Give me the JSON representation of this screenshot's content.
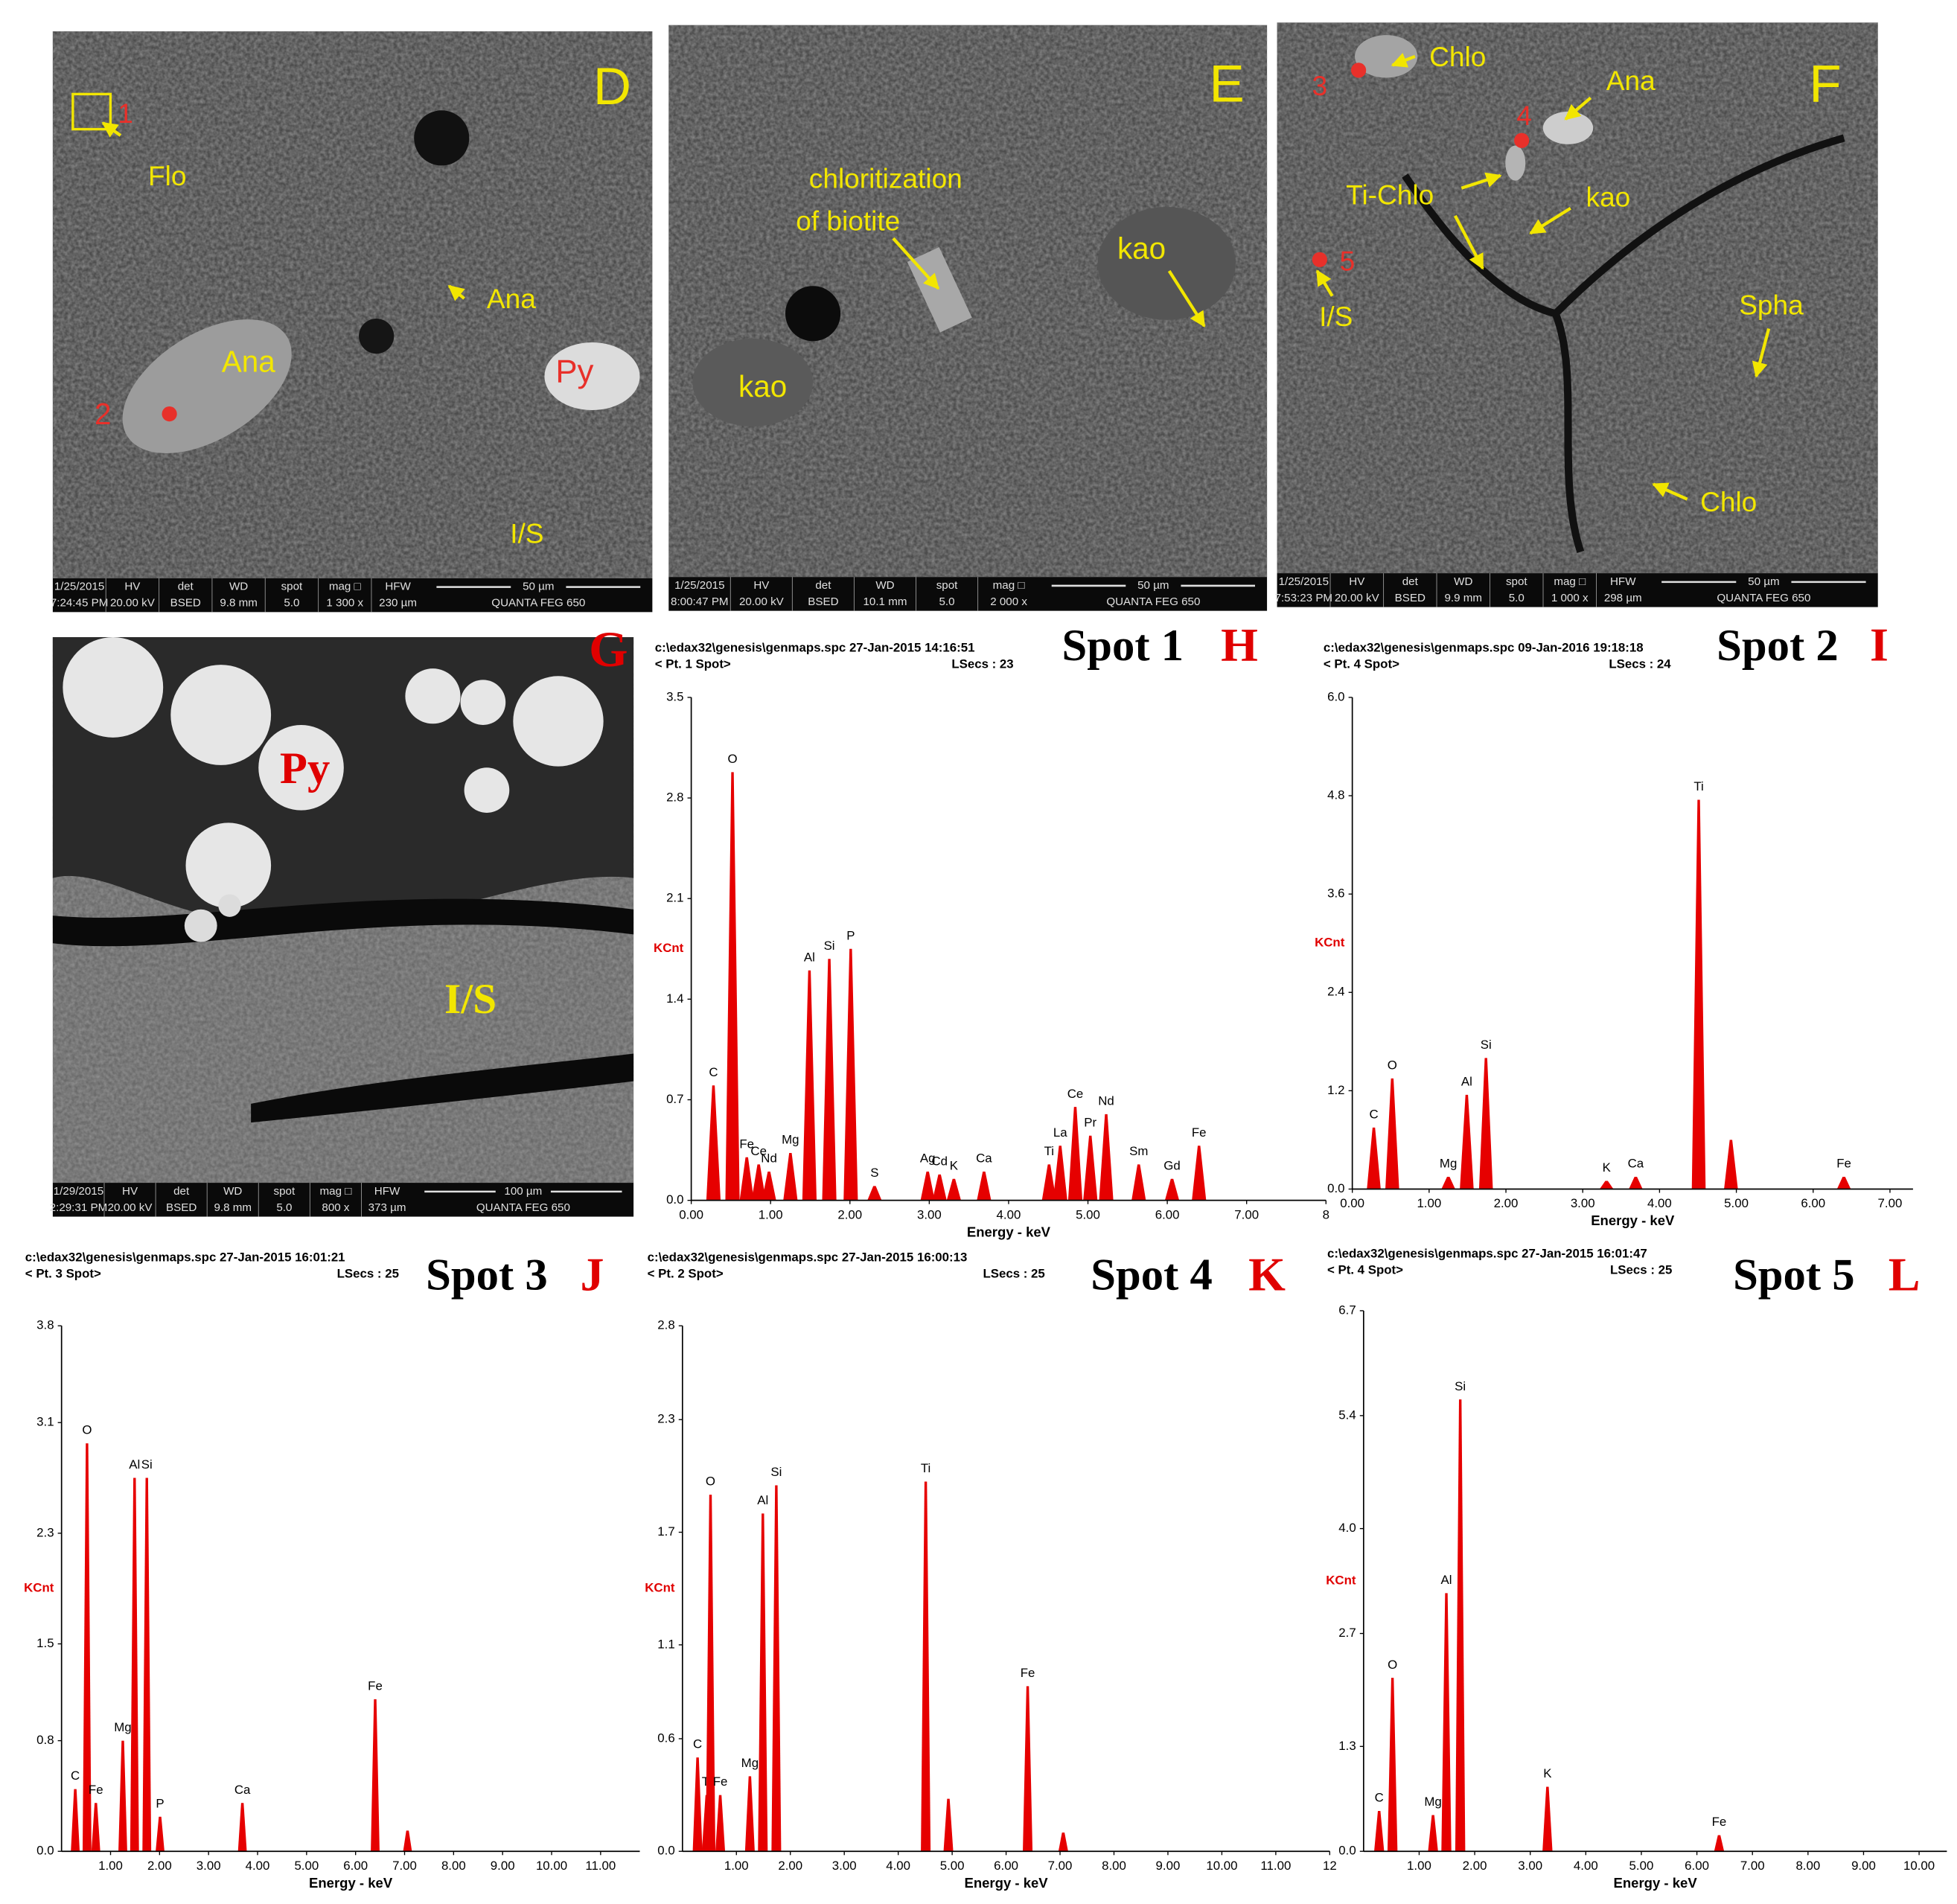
{
  "panels": [
    {
      "letter": "D",
      "labels": [
        "1",
        "Flo",
        "Ana",
        "Ana",
        "Py",
        "2",
        "I/S"
      ],
      "info": {
        "cells": [
          [
            "1/25/2015",
            "7:24:45 PM"
          ],
          [
            "HV",
            "20.00 kV"
          ],
          [
            "det",
            "BSED"
          ],
          [
            "WD",
            "9.8 mm"
          ],
          [
            "spot",
            "5.0"
          ],
          [
            "mag □",
            "1 300 x"
          ],
          [
            "HFW",
            "230 µm"
          ]
        ],
        "scale": "50 µm",
        "instrument": "QUANTA FEG 650"
      }
    },
    {
      "letter": "E",
      "labels": [
        "chloritization",
        "of  biotite",
        "kao",
        "kao"
      ],
      "info": {
        "cells": [
          [
            "1/25/2015",
            "8:00:47 PM"
          ],
          [
            "HV",
            "20.00 kV"
          ],
          [
            "det",
            "BSED"
          ],
          [
            "WD",
            "10.1 mm"
          ],
          [
            "spot",
            "5.0"
          ],
          [
            "mag □",
            "2 000 x"
          ]
        ],
        "scale": "50 µm",
        "instrument": "QUANTA FEG 650"
      }
    },
    {
      "letter": "F",
      "labels": [
        "3",
        "Chlo",
        "Ana",
        "4",
        "Ti-Chlo",
        "kao",
        "5",
        "I/S",
        "Spha",
        "Chlo"
      ],
      "info": {
        "cells": [
          [
            "1/25/2015",
            "7:53:23 PM"
          ],
          [
            "HV",
            "20.00 kV"
          ],
          [
            "det",
            "BSED"
          ],
          [
            "WD",
            "9.9 mm"
          ],
          [
            "spot",
            "5.0"
          ],
          [
            "mag □",
            "1 000 x"
          ],
          [
            "HFW",
            "298 µm"
          ]
        ],
        "scale": "50 µm",
        "instrument": "QUANTA FEG 650"
      }
    },
    {
      "letter": "G",
      "labels": [
        "Py",
        "I/S"
      ],
      "info": {
        "cells": [
          [
            "1/29/2015",
            "2:29:31 PM"
          ],
          [
            "HV",
            "20.00 kV"
          ],
          [
            "det",
            "BSED"
          ],
          [
            "WD",
            "9.8 mm"
          ],
          [
            "spot",
            "5.0"
          ],
          [
            "mag □",
            "800 x"
          ],
          [
            "HFW",
            "373 µm"
          ]
        ],
        "scale": "100 µm",
        "instrument": "QUANTA FEG 650"
      }
    }
  ],
  "chart_data": [
    {
      "type": "spectrum",
      "file": "c:\\edax32\\genesis\\genmaps.spc  27-Jan-2015 14:16:51",
      "point": "< Pt. 1 Spot>",
      "lsecs": "LSecs : 23",
      "title": "Spot 1",
      "panel": "H",
      "ylabel": "KCnt",
      "xlabel": "Energy - keV",
      "color": "#e60000",
      "x": [
        0.28,
        0.52,
        0.7,
        0.85,
        0.98,
        1.25,
        1.49,
        1.74,
        2.01,
        2.31,
        2.98,
        3.13,
        3.31,
        3.69,
        4.51,
        4.65,
        4.84,
        5.03,
        5.23,
        5.64,
        6.06,
        6.4
      ],
      "values": [
        0.8,
        2.98,
        0.3,
        0.25,
        0.2,
        0.33,
        1.6,
        1.68,
        1.75,
        0.1,
        0.2,
        0.18,
        0.15,
        0.2,
        0.25,
        0.38,
        0.65,
        0.45,
        0.6,
        0.25,
        0.15,
        0.38
      ],
      "peak_labels": [
        "C",
        "O",
        "Fe",
        "Ce",
        "Nd",
        "Mg",
        "Al",
        "Si",
        "P",
        "S",
        "Ag",
        "Cd",
        "K",
        "Ca",
        "Ti",
        "La",
        "Ce",
        "Pr",
        "Nd",
        "Sm",
        "Gd",
        "Fe"
      ],
      "xlim": [
        0,
        8
      ],
      "ylim": [
        0,
        3.5
      ],
      "xticks": [
        {
          "value": 0,
          "label": "0.00"
        },
        {
          "value": 1,
          "label": "1.00"
        },
        {
          "value": 2,
          "label": "2.00"
        },
        {
          "value": 3,
          "label": "3.00"
        },
        {
          "value": 4,
          "label": "4.00"
        },
        {
          "value": 5,
          "label": "5.00"
        },
        {
          "value": 6,
          "label": "6.00"
        },
        {
          "value": 7,
          "label": "7.00"
        },
        8
      ],
      "yticks": [
        {
          "value": 0,
          "label": "0.0"
        },
        0.7,
        1.4,
        2.1,
        2.8,
        3.5
      ]
    },
    {
      "type": "spectrum",
      "file": "c:\\edax32\\genesis\\genmaps.spc  09-Jan-2016 19:18:18",
      "point": "< Pt. 4 Spot>",
      "lsecs": "LSecs : 24",
      "title": "Spot 2",
      "panel": "I",
      "ylabel": "KCnt",
      "xlabel": "Energy - keV",
      "color": "#e60000",
      "x": [
        0.28,
        0.52,
        1.25,
        1.49,
        1.74,
        3.31,
        3.69,
        4.51,
        4.93,
        6.4
      ],
      "values": [
        0.75,
        1.35,
        0.15,
        1.15,
        1.6,
        0.1,
        0.15,
        4.75,
        0.6,
        0.15
      ],
      "peak_labels": [
        "C",
        "O",
        "Mg",
        "Al",
        "Si",
        "K",
        "Ca",
        "Ti",
        null,
        "Fe"
      ],
      "xlim": [
        0,
        7.3
      ],
      "ylim": [
        0,
        6
      ],
      "xticks": [
        {
          "value": 0,
          "label": "0.00"
        },
        {
          "value": 1,
          "label": "1.00"
        },
        {
          "value": 2,
          "label": "2.00"
        },
        {
          "value": 3,
          "label": "3.00"
        },
        {
          "value": 4,
          "label": "4.00"
        },
        {
          "value": 5,
          "label": "5.00"
        },
        {
          "value": 6,
          "label": "6.00"
        },
        {
          "value": 7,
          "label": "7.00"
        }
      ],
      "yticks": [
        {
          "value": 0,
          "label": "0.0"
        },
        1.2,
        2.4,
        3.6,
        4.8,
        {
          "value": 6,
          "label": "6.0"
        }
      ]
    },
    {
      "type": "spectrum",
      "file": "c:\\edax32\\genesis\\genmaps.spc  27-Jan-2015 16:01:21",
      "point": "< Pt. 3 Spot>",
      "lsecs": "LSecs : 25",
      "title": "Spot 3",
      "panel": "J",
      "ylabel": "KCnt",
      "xlabel": "Energy - keV",
      "color": "#e60000",
      "x": [
        0.28,
        0.52,
        0.7,
        1.25,
        1.49,
        1.74,
        2.01,
        3.69,
        6.4,
        7.06
      ],
      "values": [
        0.45,
        2.95,
        0.35,
        0.8,
        2.7,
        2.7,
        0.25,
        0.35,
        1.1,
        0.15
      ],
      "peak_labels": [
        "C",
        "O",
        "Fe",
        "Mg",
        "Al",
        "Si",
        "P",
        "Ca",
        "Fe",
        null
      ],
      "xlim": [
        0,
        11.8
      ],
      "ylim": [
        0,
        3.8
      ],
      "xticks": [
        {
          "value": 1,
          "label": "1.00"
        },
        {
          "value": 2,
          "label": "2.00"
        },
        {
          "value": 3,
          "label": "3.00"
        },
        {
          "value": 4,
          "label": "4.00"
        },
        {
          "value": 5,
          "label": "5.00"
        },
        {
          "value": 6,
          "label": "6.00"
        },
        {
          "value": 7,
          "label": "7.00"
        },
        {
          "value": 8,
          "label": "8.00"
        },
        {
          "value": 9,
          "label": "9.00"
        },
        {
          "value": 10,
          "label": "10.00"
        },
        {
          "value": 11,
          "label": "11.00"
        }
      ],
      "yticks": [
        {
          "value": 0,
          "label": "0.0"
        },
        0.8,
        1.5,
        2.3,
        3.1,
        3.8
      ]
    },
    {
      "type": "spectrum",
      "file": "c:\\edax32\\genesis\\genmaps.spc  27-Jan-2015 16:00:13",
      "point": "< Pt. 2 Spot>",
      "lsecs": "LSecs : 25",
      "title": "Spot 4",
      "panel": "K",
      "ylabel": "KCnt",
      "xlabel": "Energy - keV",
      "color": "#e60000",
      "x": [
        0.28,
        0.45,
        0.52,
        0.7,
        1.25,
        1.49,
        1.74,
        4.51,
        4.93,
        6.4,
        7.06
      ],
      "values": [
        0.5,
        0.3,
        1.9,
        0.3,
        0.4,
        1.8,
        1.95,
        1.97,
        0.28,
        0.88,
        0.1
      ],
      "peak_labels": [
        "C",
        "Ti",
        "O",
        "Fe",
        "Mg",
        "Al",
        "Si",
        "Ti",
        null,
        "Fe",
        null
      ],
      "xlim": [
        0,
        12
      ],
      "ylim": [
        0,
        2.8
      ],
      "xticks": [
        {
          "value": 1,
          "label": "1.00"
        },
        {
          "value": 2,
          "label": "2.00"
        },
        {
          "value": 3,
          "label": "3.00"
        },
        {
          "value": 4,
          "label": "4.00"
        },
        {
          "value": 5,
          "label": "5.00"
        },
        {
          "value": 6,
          "label": "6.00"
        },
        {
          "value": 7,
          "label": "7.00"
        },
        {
          "value": 8,
          "label": "8.00"
        },
        {
          "value": 9,
          "label": "9.00"
        },
        {
          "value": 10,
          "label": "10.00"
        },
        {
          "value": 11,
          "label": "11.00"
        },
        12
      ],
      "yticks": [
        {
          "value": 0,
          "label": "0.0"
        },
        0.6,
        1.1,
        1.7,
        2.3,
        2.8
      ]
    },
    {
      "type": "spectrum",
      "file": "c:\\edax32\\genesis\\genmaps.spc  27-Jan-2015 16:01:47",
      "point": "< Pt. 4 Spot>",
      "lsecs": "LSecs : 25",
      "title": "Spot 5",
      "panel": "L",
      "ylabel": "KCnt",
      "xlabel": "Energy - keV",
      "color": "#e60000",
      "x": [
        0.28,
        0.52,
        1.25,
        1.49,
        1.74,
        3.31,
        6.4
      ],
      "values": [
        0.5,
        2.15,
        0.45,
        3.2,
        5.6,
        0.8,
        0.2
      ],
      "peak_labels": [
        "C",
        "O",
        "Mg",
        "Al",
        "Si",
        "K",
        "Fe"
      ],
      "xlim": [
        0,
        10.5
      ],
      "ylim": [
        0,
        6.7
      ],
      "xticks": [
        {
          "value": 1,
          "label": "1.00"
        },
        {
          "value": 2,
          "label": "2.00"
        },
        {
          "value": 3,
          "label": "3.00"
        },
        {
          "value": 4,
          "label": "4.00"
        },
        {
          "value": 5,
          "label": "5.00"
        },
        {
          "value": 6,
          "label": "6.00"
        },
        {
          "value": 7,
          "label": "7.00"
        },
        {
          "value": 8,
          "label": "8.00"
        },
        {
          "value": 9,
          "label": "9.00"
        },
        {
          "value": 10,
          "label": "10.00"
        }
      ],
      "yticks": [
        {
          "value": 0,
          "label": "0.0"
        },
        1.3,
        2.7,
        {
          "value": 4,
          "label": "4.0"
        },
        5.4,
        6.7
      ]
    }
  ]
}
